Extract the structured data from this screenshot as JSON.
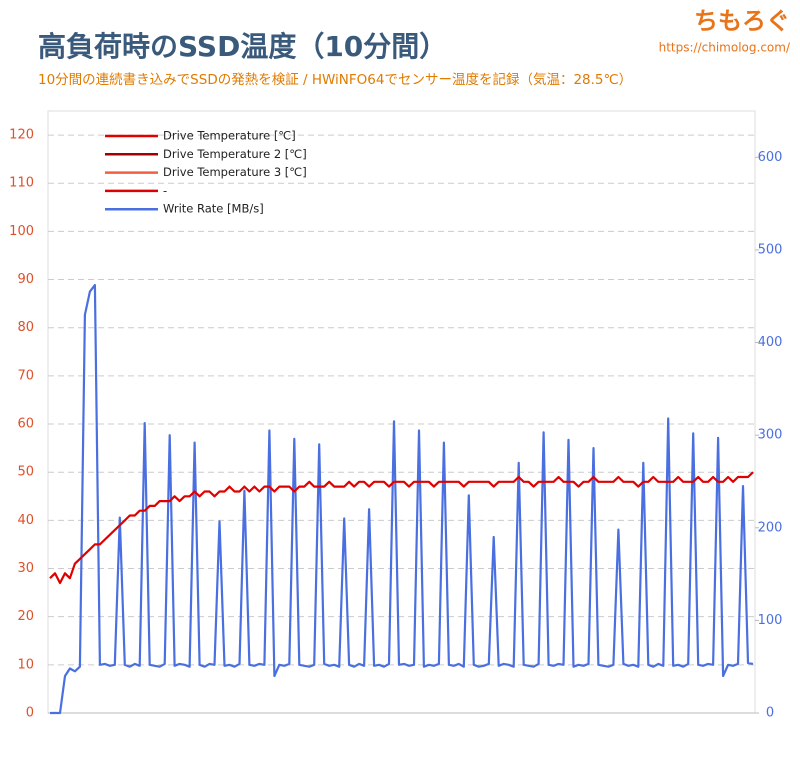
{
  "branding": {
    "logo": "ちもろぐ",
    "url": "https://chimolog.com/"
  },
  "chart_data": {
    "type": "line",
    "title": "高負荷時のSSD温度（10分間）",
    "subtitle": "10分間の連続書き込みでSSDの発熱を検証 / HWiNFO64でセンサー温度を記録（気温：28.5℃）",
    "categories": [
      null,
      null,
      null,
      null,
      null,
      null,
      null,
      null,
      null,
      null,
      null,
      null,
      null,
      null,
      null,
      null,
      null,
      null,
      null,
      null,
      null,
      null,
      null,
      null,
      null,
      null,
      null,
      null,
      null,
      null,
      null,
      null,
      null,
      null,
      null,
      null,
      null,
      null,
      null,
      null,
      null,
      null,
      null,
      null,
      null,
      null,
      null,
      null,
      null,
      null,
      null,
      null,
      null,
      null,
      null,
      null,
      null,
      null,
      null,
      null,
      null,
      null,
      null,
      null,
      null,
      null,
      null,
      null,
      null,
      null,
      null,
      null,
      null,
      null,
      null,
      null,
      null,
      null,
      null,
      null,
      null,
      null,
      null,
      null,
      null,
      null,
      null,
      null,
      null,
      null,
      null,
      null,
      null,
      null,
      null,
      null,
      null,
      null,
      null,
      null,
      null,
      null,
      null,
      null,
      null,
      null,
      null,
      null,
      null,
      null,
      null,
      null,
      null,
      null,
      null,
      null,
      null,
      null,
      null,
      null,
      null,
      null,
      null,
      null,
      null,
      null,
      null,
      null,
      null,
      null,
      null,
      null,
      null,
      null,
      null,
      null,
      null,
      null,
      null,
      null,
      null,
      null
    ],
    "ylim": [
      0,
      125
    ],
    "yticks": [
      0,
      10,
      20,
      30,
      40,
      50,
      60,
      70,
      80,
      90,
      100,
      110,
      120
    ],
    "y2lim": [
      0,
      650
    ],
    "y2ticks": [
      0,
      100,
      200,
      300,
      400,
      500,
      600
    ],
    "grid": true,
    "legend": "top-left",
    "series": [
      {
        "name": "Drive Temperature [℃]",
        "color": "#e00000",
        "values": [
          28,
          29,
          27,
          29,
          28,
          31,
          32,
          33,
          34,
          35,
          35,
          36,
          37,
          38,
          39,
          40,
          41,
          41,
          42,
          42,
          43,
          43,
          44,
          44,
          44,
          45,
          44,
          45,
          45,
          46,
          45,
          46,
          46,
          45,
          46,
          46,
          47,
          46,
          46,
          47,
          46,
          47,
          46,
          47,
          47,
          46,
          47,
          47,
          47,
          46,
          47,
          47,
          48,
          47,
          47,
          47,
          48,
          47,
          47,
          47,
          48,
          47,
          48,
          48,
          47,
          48,
          48,
          48,
          47,
          48,
          48,
          48,
          47,
          48,
          48,
          48,
          48,
          47,
          48,
          48,
          48,
          48,
          48,
          47,
          48,
          48,
          48,
          48,
          48,
          47,
          48,
          48,
          48,
          48,
          49,
          48,
          48,
          47,
          48,
          48,
          48,
          48,
          49,
          48,
          48,
          48,
          47,
          48,
          48,
          49,
          48,
          48,
          48,
          48,
          49,
          48,
          48,
          48,
          47,
          48,
          48,
          49,
          48,
          48,
          48,
          48,
          49,
          48,
          48,
          48,
          49,
          48,
          48,
          49,
          48,
          48,
          49,
          48,
          49,
          49,
          49,
          50
        ]
      },
      {
        "name": "Drive Temperature 2 [℃]",
        "color": "#a00000"
      },
      {
        "name": "Drive Temperature 3 [℃]",
        "color": "#f06040"
      },
      {
        "name": "-",
        "color": "#e00000"
      },
      {
        "name": "Write Rate [MB/s]",
        "color": "#4a6fe0",
        "axis": "y2",
        "values": [
          0,
          0,
          0,
          40,
          48,
          45,
          50,
          430,
          455,
          462,
          52,
          53,
          51,
          52,
          211,
          52,
          50,
          53,
          51,
          313,
          52,
          51,
          50,
          53,
          300,
          51,
          53,
          52,
          50,
          292,
          52,
          50,
          53,
          52,
          207,
          51,
          52,
          50,
          53,
          240,
          52,
          51,
          53,
          52,
          305,
          40,
          52,
          51,
          53,
          296,
          52,
          51,
          50,
          52,
          290,
          53,
          51,
          52,
          50,
          210,
          52,
          50,
          53,
          51,
          220,
          51,
          52,
          50,
          53,
          315,
          52,
          53,
          51,
          52,
          305,
          50,
          52,
          51,
          53,
          292,
          52,
          51,
          53,
          50,
          235,
          52,
          50,
          51,
          53,
          190,
          51,
          53,
          52,
          50,
          270,
          52,
          51,
          50,
          53,
          303,
          52,
          51,
          53,
          52,
          295,
          50,
          52,
          51,
          53,
          286,
          52,
          51,
          50,
          52,
          198,
          53,
          51,
          52,
          50,
          270,
          52,
          50,
          53,
          51,
          318,
          51,
          52,
          50,
          53,
          302,
          52,
          51,
          53,
          52,
          297,
          40,
          52,
          51,
          53,
          245,
          54,
          53
        ]
      }
    ]
  }
}
